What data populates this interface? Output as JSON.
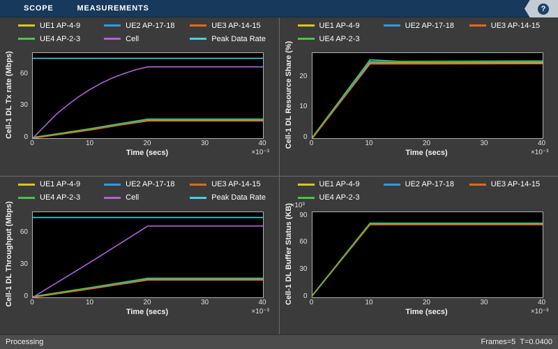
{
  "toolbar": {
    "tabs": [
      {
        "label": "SCOPE"
      },
      {
        "label": "MEASUREMENTS"
      }
    ],
    "help": "?"
  },
  "status_bar": {
    "left": "Processing",
    "right": "Frames=5  T=0.0400"
  },
  "colors": {
    "toolbar_bg": "#17395c",
    "window_bg": "#3b3b3b",
    "plot_bg": "#000000",
    "ue1": "#dcc525",
    "ue2": "#2d9be8",
    "ue3": "#e06a20",
    "ue4": "#45c945",
    "cell": "#b35fe0",
    "peak": "#3fd5e6"
  },
  "chart_data": [
    {
      "type": "line",
      "title": "",
      "ylabel": "Cell-1 DL Tx rate (Mbps)",
      "xlabel": "Time (secs)",
      "x_multiplier": "×10⁻³",
      "y_multiplier": "",
      "xlim": [
        0,
        40
      ],
      "ylim": [
        0,
        80
      ],
      "xticks": [
        0,
        10,
        20,
        30,
        40
      ],
      "yticks": [
        0,
        30,
        60
      ],
      "grid": false,
      "legend_position": "top",
      "series": [
        {
          "name": "UE1 AP-4-9",
          "color": "#dcc525",
          "points": [
            [
              0,
              0
            ],
            [
              5,
              4
            ],
            [
              10,
              8
            ],
            [
              15,
              12.5
            ],
            [
              20,
              16.8
            ],
            [
              40,
              16.8
            ]
          ]
        },
        {
          "name": "UE2 AP-17-18",
          "color": "#2d9be8",
          "points": [
            [
              0,
              0
            ],
            [
              5,
              4.2
            ],
            [
              10,
              8.4
            ],
            [
              15,
              13
            ],
            [
              20,
              17.4
            ],
            [
              40,
              17.4
            ]
          ]
        },
        {
          "name": "UE3 AP-14-15",
          "color": "#e06a20",
          "points": [
            [
              0,
              0
            ],
            [
              5,
              3.8
            ],
            [
              10,
              7.7
            ],
            [
              15,
              12.1
            ],
            [
              20,
              16.2
            ],
            [
              40,
              16.2
            ]
          ]
        },
        {
          "name": "UE4 AP-2-3",
          "color": "#45c945",
          "points": [
            [
              0,
              0.8
            ],
            [
              5,
              4.8
            ],
            [
              10,
              9
            ],
            [
              15,
              13.6
            ],
            [
              20,
              18
            ],
            [
              40,
              18
            ]
          ]
        },
        {
          "name": "Cell",
          "color": "#b35fe0",
          "points": [
            [
              0,
              0
            ],
            [
              2,
              11
            ],
            [
              4,
              22
            ],
            [
              6,
              31
            ],
            [
              8,
              39
            ],
            [
              10,
              46
            ],
            [
              12,
              52
            ],
            [
              14,
              57
            ],
            [
              16,
              61
            ],
            [
              18,
              64.5
            ],
            [
              20,
              67
            ],
            [
              40,
              67
            ]
          ]
        },
        {
          "name": "Peak Data Rate",
          "color": "#3fd5e6",
          "points": [
            [
              0,
              75
            ],
            [
              40,
              75
            ]
          ]
        }
      ]
    },
    {
      "type": "line",
      "title": "",
      "ylabel": "Cell-1 DL Resource Share (%)",
      "xlabel": "Time (secs)",
      "x_multiplier": "×10⁻³",
      "y_multiplier": "",
      "xlim": [
        0,
        40
      ],
      "ylim": [
        0,
        28
      ],
      "xticks": [
        0,
        10,
        20,
        30,
        40
      ],
      "yticks": [
        0,
        10,
        20
      ],
      "grid": false,
      "legend_position": "top",
      "series": [
        {
          "name": "UE1 AP-4-9",
          "color": "#dcc525",
          "points": [
            [
              0,
              0
            ],
            [
              10,
              24.8
            ],
            [
              40,
              24.8
            ]
          ]
        },
        {
          "name": "UE2 AP-17-18",
          "color": "#2d9be8",
          "points": [
            [
              0,
              0
            ],
            [
              10,
              25.3
            ],
            [
              40,
              25.2
            ]
          ]
        },
        {
          "name": "UE3 AP-14-15",
          "color": "#e06a20",
          "points": [
            [
              0,
              0
            ],
            [
              10,
              24.4
            ],
            [
              40,
              24.5
            ]
          ]
        },
        {
          "name": "UE4 AP-2-3",
          "color": "#45c945",
          "points": [
            [
              0,
              0.4
            ],
            [
              10,
              25.8
            ],
            [
              15,
              25.3
            ],
            [
              40,
              25.4
            ]
          ]
        }
      ]
    },
    {
      "type": "line",
      "title": "",
      "ylabel": "Cell-1 DL Throughput (Mbps)",
      "xlabel": "Time (secs)",
      "x_multiplier": "×10⁻³",
      "y_multiplier": "",
      "xlim": [
        0,
        40
      ],
      "ylim": [
        0,
        80
      ],
      "xticks": [
        0,
        10,
        20,
        30,
        40
      ],
      "yticks": [
        0,
        30,
        60
      ],
      "grid": false,
      "legend_position": "top",
      "series": [
        {
          "name": "UE1 AP-4-9",
          "color": "#dcc525",
          "points": [
            [
              0,
              0
            ],
            [
              10,
              8.2
            ],
            [
              20,
              16.8
            ],
            [
              40,
              16.8
            ]
          ]
        },
        {
          "name": "UE2 AP-17-18",
          "color": "#2d9be8",
          "points": [
            [
              0,
              0
            ],
            [
              10,
              8.6
            ],
            [
              20,
              17.4
            ],
            [
              40,
              17.4
            ]
          ]
        },
        {
          "name": "UE3 AP-14-15",
          "color": "#e06a20",
          "points": [
            [
              0,
              0
            ],
            [
              10,
              7.9
            ],
            [
              20,
              16.2
            ],
            [
              40,
              16.2
            ]
          ]
        },
        {
          "name": "UE4 AP-2-3",
          "color": "#45c945",
          "points": [
            [
              0,
              0.8
            ],
            [
              10,
              9.2
            ],
            [
              20,
              18
            ],
            [
              40,
              18
            ]
          ]
        },
        {
          "name": "Cell",
          "color": "#b35fe0",
          "points": [
            [
              0,
              0
            ],
            [
              10,
              33
            ],
            [
              20,
              67
            ],
            [
              40,
              67
            ]
          ]
        },
        {
          "name": "Peak Data Rate",
          "color": "#3fd5e6",
          "points": [
            [
              0,
              75
            ],
            [
              40,
              75
            ]
          ]
        }
      ]
    },
    {
      "type": "line",
      "title": "",
      "ylabel": "Cell-1 DL Buffer Status (KB)",
      "xlabel": "Time (secs)",
      "x_multiplier": "×10⁻³",
      "y_multiplier": "×10³",
      "xlim": [
        0,
        40
      ],
      "ylim": [
        0,
        95
      ],
      "xticks": [
        0,
        10,
        20,
        30,
        40
      ],
      "yticks": [
        0,
        30,
        60,
        90
      ],
      "grid": false,
      "legend_position": "top",
      "series": [
        {
          "name": "UE1 AP-4-9",
          "color": "#dcc525",
          "points": [
            [
              0,
              2
            ],
            [
              10,
              81.5
            ],
            [
              40,
              81.5
            ]
          ]
        },
        {
          "name": "UE2 AP-17-18",
          "color": "#2d9be8",
          "points": [
            [
              0,
              2
            ],
            [
              10,
              82.2
            ],
            [
              40,
              82.2
            ]
          ]
        },
        {
          "name": "UE3 AP-14-15",
          "color": "#e06a20",
          "points": [
            [
              0,
              2
            ],
            [
              10,
              81
            ],
            [
              40,
              81
            ]
          ]
        },
        {
          "name": "UE4 AP-2-3",
          "color": "#45c945",
          "points": [
            [
              0,
              2.5
            ],
            [
              10,
              82.8
            ],
            [
              40,
              82.8
            ]
          ]
        }
      ]
    }
  ]
}
